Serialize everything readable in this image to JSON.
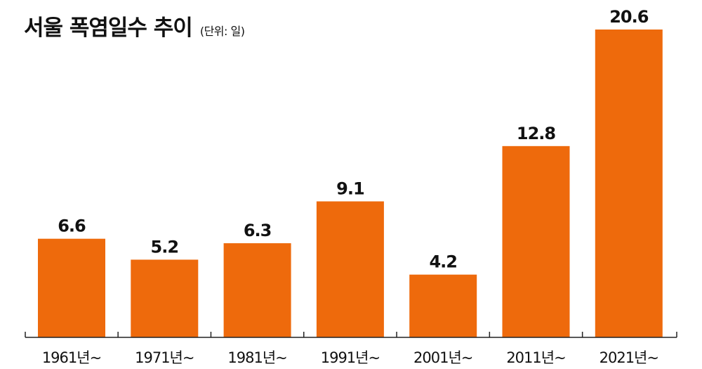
{
  "title": "서울 폭염일수 추이",
  "subtitle": "(단위: 일)",
  "colors": {
    "bar": "#ee6a0c",
    "axis": "#222222",
    "text": "#111111"
  },
  "chart_data": {
    "type": "bar",
    "title": "서울 폭염일수 추이",
    "unit": "(단위: 일)",
    "categories": [
      "1961년~",
      "1971년~",
      "1981년~",
      "1991년~",
      "2001년~",
      "2011년~",
      "2021년~"
    ],
    "values": [
      6.6,
      5.2,
      6.3,
      9.1,
      4.2,
      12.8,
      20.6
    ],
    "value_labels": [
      "6.6",
      "5.2",
      "6.3",
      "9.1",
      "4.2",
      "12.8",
      "20.6"
    ],
    "ylim": [
      0,
      20.6
    ],
    "grid": false,
    "legend": "none"
  }
}
